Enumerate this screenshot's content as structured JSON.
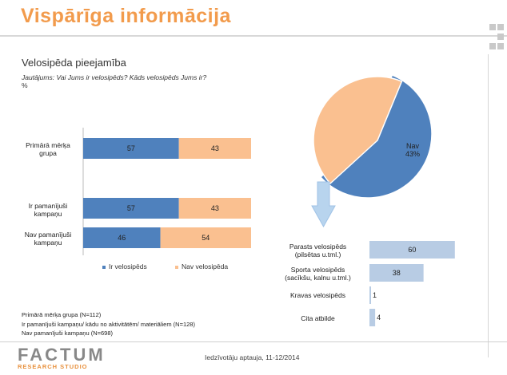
{
  "header": {
    "title": "Vispārīga informācija"
  },
  "subtitle": "Velosipēda pieejamība",
  "question": "Jautājums: Vai Jums ir velosipēds? Kāds velosipēds Jums ir?",
  "percent_sign": "%",
  "colors": {
    "accent": "#f29b4c",
    "blue": "#4f81bd",
    "peach": "#fac090",
    "lightblue": "#b8cce4"
  },
  "chart_data": [
    {
      "type": "bar",
      "orientation": "horizontal",
      "stacked": true,
      "categories": [
        "Primārā mērķa grupa",
        "Ir pamanījuši kampaņu",
        "Nav pamanījuši kampaņu"
      ],
      "series": [
        {
          "name": "Ir velosipēds",
          "values": [
            57,
            57,
            46
          ],
          "color": "#4f81bd"
        },
        {
          "name": "Nav velosipēda",
          "values": [
            43,
            43,
            54
          ],
          "color": "#fac090"
        }
      ],
      "legend": "bottom"
    },
    {
      "type": "pie",
      "labels": [
        "Ir velosipēds",
        "Nav"
      ],
      "values": [
        57,
        43
      ],
      "colors": [
        "#4f81bd",
        "#fac090"
      ]
    },
    {
      "type": "bar",
      "orientation": "horizontal",
      "categories": [
        "Parasts velosipēds (pilsētas u.tml.)",
        "Sporta velosipēds (sacīkšu, kalnu u.tml.)",
        "Kravas velosipēds",
        "Cita atbilde"
      ],
      "category_lines": [
        [
          "Parasts velosipēds",
          "(pilsētas u.tml.)"
        ],
        [
          "Sporta velosipēds",
          "(sacīkšu, kalnu u.tml.)"
        ],
        [
          "Kravas velosipēds"
        ],
        [
          "Cita atbilde"
        ]
      ],
      "values": [
        60,
        38,
        1,
        4
      ],
      "color": "#b8cce4"
    }
  ],
  "row_label_lines": [
    [
      "Primārā mērķa",
      "grupa"
    ],
    [
      "Ir pamanījuši",
      "kampaņu"
    ],
    [
      "Nav pamanījuši",
      "kampaņu"
    ]
  ],
  "notes": [
    "Primārā mērķa grupa (N=112)",
    "Ir pamanījuši kampaņu/ kādu no aktivitātēm/ materiāliem (N=128)",
    "Nav pamanījuši kampaņu (N=698)"
  ],
  "footer": {
    "logo_main": "FACTUM",
    "logo_sub": "RESEARCH STUDIO",
    "source": "Iedzīvotāju aptauja, 11-12/2014"
  }
}
